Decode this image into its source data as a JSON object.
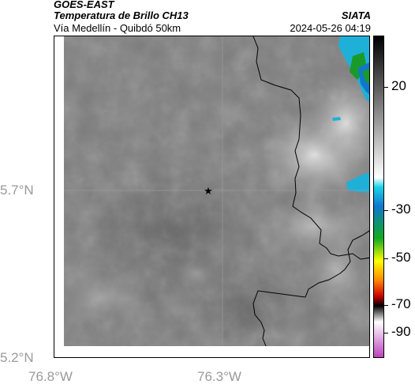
{
  "header": {
    "satellite": "GOES-EAST",
    "product": "Temperatura de Brillo CH13",
    "region": "Vía Medellín - Quibdó 50km",
    "agency": "SIATA",
    "timestamp": "2024-05-26 04:19"
  },
  "map": {
    "lat_labels": [
      "5.7°N",
      "5.2°N"
    ],
    "lon_labels": [
      "76.8°W",
      "76.3°W"
    ],
    "marker": "star-icon",
    "colors": {
      "background_gray": "#7d7d7d",
      "cold_cloud": "#d9d9d9",
      "cyan": "#1fb0d8",
      "green": "#1a9a2a",
      "border_line": "#000000"
    }
  },
  "colorbar": {
    "tick_labels": [
      "20",
      "-30",
      "-50",
      "-70",
      "-90"
    ],
    "stops": [
      "#000000",
      "#ffffff",
      "#1ad3e8",
      "#1177cc",
      "#11aa22",
      "#ffff00",
      "#ff8800",
      "#cc0000",
      "#000000",
      "#ffffff",
      "#bb44bb"
    ]
  }
}
